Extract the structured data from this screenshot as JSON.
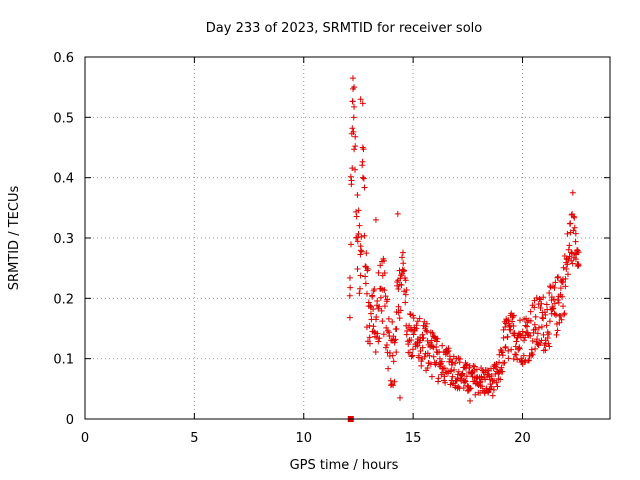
{
  "chart_data": {
    "type": "scatter",
    "title": "Day 233 of 2023, SRMTID for receiver solo",
    "xlabel": "GPS time / hours",
    "ylabel": "SRMTID / TECUs",
    "xlim": [
      0,
      24
    ],
    "ylim": [
      0,
      0.6
    ],
    "x_ticks": [
      0,
      5,
      10,
      15,
      20
    ],
    "x_tick_labels": [
      "0",
      "5",
      "10",
      "15",
      "20"
    ],
    "y_ticks": [
      0,
      0.1,
      0.2,
      0.3,
      0.4,
      0.5,
      0.6
    ],
    "y_tick_labels": [
      "0",
      "0.1",
      "0.2",
      "0.3",
      "0.4",
      "0.5",
      "0.6"
    ],
    "grid": true,
    "marker": "plus",
    "color": "#e00000",
    "zero_marker": {
      "x": 12.15,
      "y": 0.0,
      "marker": "square"
    },
    "envelope": [
      {
        "x": 12.1,
        "y": 0.15,
        "spread": 0.06
      },
      {
        "x": 12.2,
        "y": 0.45,
        "spread": 0.1
      },
      {
        "x": 12.3,
        "y": 0.52,
        "spread": 0.05
      },
      {
        "x": 12.45,
        "y": 0.3,
        "spread": 0.1
      },
      {
        "x": 12.6,
        "y": 0.2,
        "spread": 0.08
      },
      {
        "x": 12.7,
        "y": 0.45,
        "spread": 0.08
      },
      {
        "x": 12.9,
        "y": 0.2,
        "spread": 0.08
      },
      {
        "x": 13.3,
        "y": 0.15,
        "spread": 0.06
      },
      {
        "x": 13.6,
        "y": 0.22,
        "spread": 0.07
      },
      {
        "x": 13.9,
        "y": 0.12,
        "spread": 0.05
      },
      {
        "x": 14.1,
        "y": 0.1,
        "spread": 0.06
      },
      {
        "x": 14.3,
        "y": 0.2,
        "spread": 0.08
      },
      {
        "x": 14.55,
        "y": 0.25,
        "spread": 0.04
      },
      {
        "x": 14.8,
        "y": 0.14,
        "spread": 0.04
      },
      {
        "x": 15.2,
        "y": 0.13,
        "spread": 0.04
      },
      {
        "x": 15.6,
        "y": 0.12,
        "spread": 0.04
      },
      {
        "x": 16.0,
        "y": 0.1,
        "spread": 0.04
      },
      {
        "x": 16.5,
        "y": 0.09,
        "spread": 0.03
      },
      {
        "x": 17.0,
        "y": 0.08,
        "spread": 0.03
      },
      {
        "x": 17.5,
        "y": 0.065,
        "spread": 0.025
      },
      {
        "x": 18.0,
        "y": 0.065,
        "spread": 0.025
      },
      {
        "x": 18.5,
        "y": 0.06,
        "spread": 0.025
      },
      {
        "x": 18.9,
        "y": 0.07,
        "spread": 0.025
      },
      {
        "x": 19.2,
        "y": 0.13,
        "spread": 0.04
      },
      {
        "x": 19.6,
        "y": 0.14,
        "spread": 0.04
      },
      {
        "x": 20.0,
        "y": 0.13,
        "spread": 0.04
      },
      {
        "x": 20.5,
        "y": 0.15,
        "spread": 0.05
      },
      {
        "x": 21.0,
        "y": 0.16,
        "spread": 0.05
      },
      {
        "x": 21.5,
        "y": 0.18,
        "spread": 0.05
      },
      {
        "x": 21.9,
        "y": 0.22,
        "spread": 0.05
      },
      {
        "x": 22.2,
        "y": 0.3,
        "spread": 0.05
      },
      {
        "x": 22.4,
        "y": 0.3,
        "spread": 0.04
      },
      {
        "x": 22.6,
        "y": 0.27,
        "spread": 0.02
      }
    ],
    "peaks": [
      {
        "x": 12.25,
        "y": 0.565
      },
      {
        "x": 12.3,
        "y": 0.55
      },
      {
        "x": 12.6,
        "y": 0.53
      },
      {
        "x": 13.3,
        "y": 0.33
      },
      {
        "x": 14.3,
        "y": 0.34
      },
      {
        "x": 22.3,
        "y": 0.375
      },
      {
        "x": 14.4,
        "y": 0.035
      },
      {
        "x": 17.6,
        "y": 0.03
      }
    ]
  }
}
